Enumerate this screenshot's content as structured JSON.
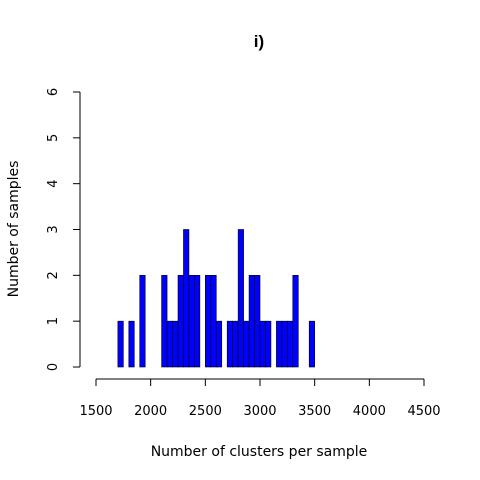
{
  "chart_data": {
    "type": "bar",
    "title": "i)",
    "xlabel": "Number of clusters per sample",
    "ylabel": "Number of samples",
    "xlim": [
      1500,
      4500
    ],
    "ylim": [
      0,
      6
    ],
    "x_ticks": [
      "1500",
      "2000",
      "2500",
      "3000",
      "3500",
      "4000",
      "4500"
    ],
    "y_ticks": [
      "0",
      "1",
      "2",
      "3",
      "4",
      "5",
      "6"
    ],
    "bin_width": 50,
    "bin_starts": [
      1700,
      1750,
      1800,
      1850,
      1900,
      1950,
      2000,
      2050,
      2100,
      2150,
      2200,
      2250,
      2300,
      2350,
      2400,
      2450,
      2500,
      2550,
      2600,
      2650,
      2700,
      2750,
      2800,
      2850,
      2900,
      2950,
      3000,
      3050,
      3100,
      3150,
      3200,
      3250,
      3300,
      3350,
      3400,
      3450
    ],
    "values": [
      1,
      0,
      1,
      0,
      2,
      0,
      0,
      0,
      2,
      1,
      1,
      2,
      3,
      2,
      2,
      0,
      2,
      2,
      1,
      0,
      1,
      1,
      3,
      1,
      2,
      2,
      1,
      1,
      0,
      1,
      1,
      1,
      2,
      0,
      0,
      1
    ],
    "grid": false,
    "bar_color": "#0000ff"
  }
}
